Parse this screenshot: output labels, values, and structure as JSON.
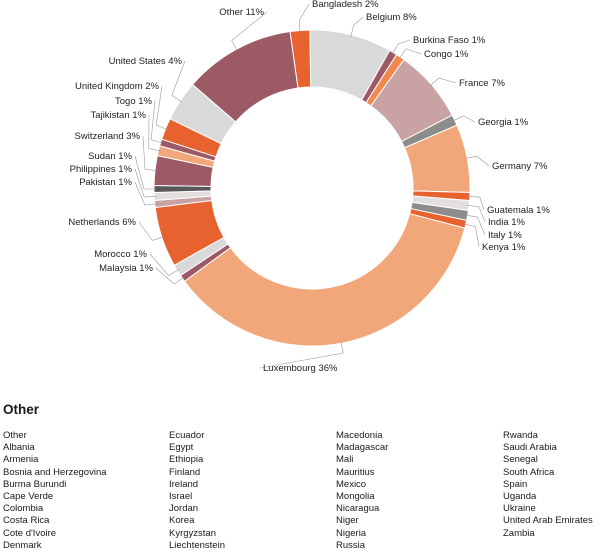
{
  "chart_data": {
    "type": "pie",
    "style": "donut",
    "slices": [
      {
        "label": "Bangladesh",
        "pct": 2,
        "text": "Bangladesh  2%",
        "value": 2.0,
        "color": "#e8622f"
      },
      {
        "label": "Belgium",
        "pct": 8,
        "text": "Belgium  8%",
        "value": 8.3,
        "color": "#d9d9d9"
      },
      {
        "label": "Burkina Faso",
        "pct": 1,
        "text": "Burkina Faso  1%",
        "value": 0.8,
        "color": "#9c5a66"
      },
      {
        "label": "Congo",
        "pct": 1,
        "text": "Congo  1%",
        "value": 0.9,
        "color": "#f0884f"
      },
      {
        "label": "France",
        "pct": 7,
        "text": "France  7%",
        "value": 7.4,
        "color": "#c9a3a3"
      },
      {
        "label": "Georgia",
        "pct": 1,
        "text": "Georgia  1%",
        "value": 1.1,
        "color": "#8c8c8c"
      },
      {
        "label": "Germany",
        "pct": 7,
        "text": "Germany  7%",
        "value": 6.9,
        "color": "#f2a77a"
      },
      {
        "label": "Guatemala",
        "pct": 1,
        "text": "Guatemala  1%",
        "value": 0.8,
        "color": "#e8622f"
      },
      {
        "label": "India",
        "pct": 1,
        "text": "India  1%",
        "value": 1.0,
        "color": "#e2dede"
      },
      {
        "label": "Italy",
        "pct": 1,
        "text": "Italy  1%",
        "value": 1.0,
        "color": "#8c8c8c"
      },
      {
        "label": "Kenya",
        "pct": 1,
        "text": "Kenya  1%",
        "value": 0.8,
        "color": "#e8622f"
      },
      {
        "label": "Luxembourg",
        "pct": 36,
        "text": "Luxembourg  36%",
        "value": 35.5,
        "color": "#f2a77a"
      },
      {
        "label": "Malaysia",
        "pct": 1,
        "text": "Malaysia  1%",
        "value": 0.7,
        "color": "#9c5a66"
      },
      {
        "label": "Morocco",
        "pct": 1,
        "text": "Morocco  1%",
        "value": 1.2,
        "color": "#d9d9d9"
      },
      {
        "label": "Netherlands",
        "pct": 6,
        "text": "Netherlands  6%",
        "value": 6.1,
        "color": "#e8622f"
      },
      {
        "label": "Pakistan",
        "pct": 1,
        "text": "Pakistan  1%",
        "value": 0.7,
        "color": "#c9a3a3"
      },
      {
        "label": "Philippines",
        "pct": 1,
        "text": "Philippines  1%",
        "value": 0.8,
        "color": "#e2dede"
      },
      {
        "label": "Sudan",
        "pct": 1,
        "text": "Sudan  1%",
        "value": 0.7,
        "color": "#595959"
      },
      {
        "label": "Switzerland",
        "pct": 3,
        "text": "Switzerland  3%",
        "value": 3.0,
        "color": "#9c5a66"
      },
      {
        "label": "Tajikistan",
        "pct": 1,
        "text": "Tajikistan  1%",
        "value": 1.0,
        "color": "#f2a77a"
      },
      {
        "label": "Togo",
        "pct": 1,
        "text": "Togo  1%",
        "value": 0.7,
        "color": "#9c5a66"
      },
      {
        "label": "United Kingdom",
        "pct": 2,
        "text": "United Kingdom  2%",
        "value": 2.2,
        "color": "#e8622f"
      },
      {
        "label": "United States",
        "pct": 4,
        "text": "United States  4%",
        "value": 4.1,
        "color": "#d9d9d9"
      },
      {
        "label": "Other",
        "pct": 11,
        "text": "Other  11%",
        "value": 11.3,
        "color": "#9c5a66"
      }
    ]
  },
  "other_section": {
    "title": "Other",
    "columns": [
      [
        "Other",
        "Albania",
        "Armenia",
        "Bosnia and Herzegovina",
        "Burma Burundi",
        "Cape Verde",
        "Colombia",
        "Costa Rica",
        "Cote d'Ivoire",
        "Denmark"
      ],
      [
        "Ecuador",
        "Egypt",
        "Ethiopia",
        "Finland",
        "Ireland",
        "Israel",
        "Jordan",
        "Korea",
        "Kyrgyzstan",
        "Liechtenstein"
      ],
      [
        "Macedonia",
        "Madagascar",
        "Mali",
        "Mauritius",
        "Mexico",
        "Mongolia",
        "Nicaragua",
        "Niger",
        "Nigeria",
        "Russia"
      ],
      [
        "Rwanda",
        "Saudi Arabia",
        "Senegal",
        "South Africa",
        "Spain",
        "Uganda",
        "Ukraine",
        "United Arab Emirates",
        "Zambia"
      ]
    ]
  }
}
